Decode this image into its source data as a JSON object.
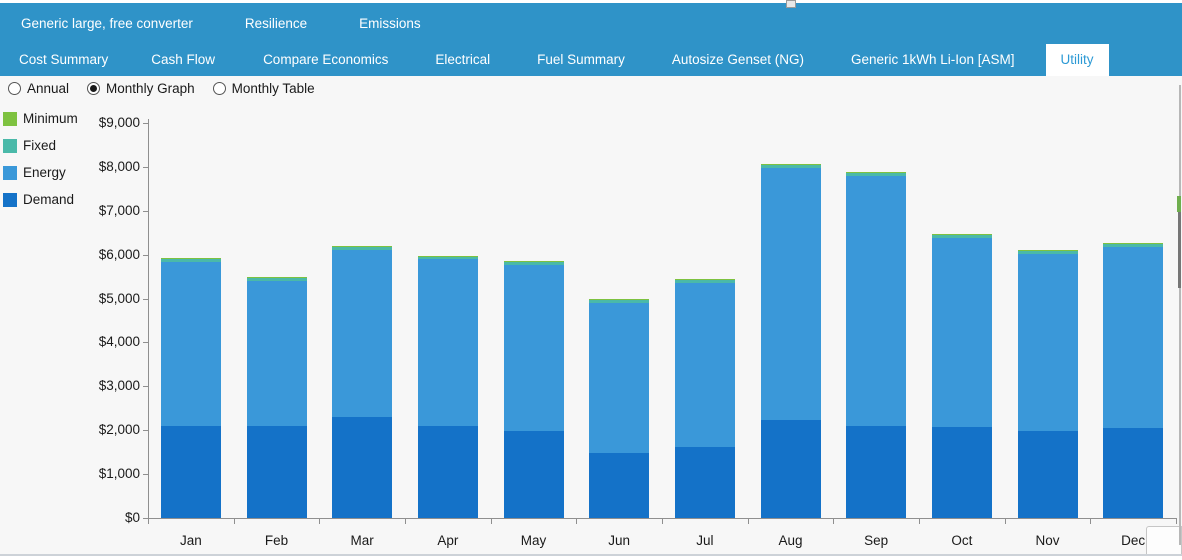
{
  "header": {
    "row1_tabs": [
      {
        "label": "Generic large, free converter",
        "active": false
      },
      {
        "label": "Resilience",
        "active": false
      },
      {
        "label": "Emissions",
        "active": false
      }
    ],
    "row2_tabs": [
      {
        "label": "Cost Summary",
        "active": false
      },
      {
        "label": "Cash Flow",
        "active": false
      },
      {
        "label": "Compare Economics",
        "active": false
      },
      {
        "label": "Electrical",
        "active": false
      },
      {
        "label": "Fuel Summary",
        "active": false
      },
      {
        "label": "Autosize Genset (NG)",
        "active": false
      },
      {
        "label": "Generic 1kWh Li-Ion [ASM]",
        "active": false
      },
      {
        "label": "Utility",
        "active": true
      }
    ],
    "background_color": "#2f93c8",
    "active_tab_text_color": "#2d9ad5"
  },
  "view_options": {
    "radios": [
      {
        "label": "Annual",
        "selected": false
      },
      {
        "label": "Monthly Graph",
        "selected": true
      },
      {
        "label": "Monthly Table",
        "selected": false
      }
    ]
  },
  "legend": [
    {
      "label": "Minimum",
      "color": "#7ec240"
    },
    {
      "label": "Fixed",
      "color": "#4ab9a9"
    },
    {
      "label": "Energy",
      "color": "#3a98d9"
    },
    {
      "label": "Demand",
      "color": "#1472c8"
    }
  ],
  "chart_data": {
    "type": "bar",
    "stacked": true,
    "title": "",
    "xlabel": "",
    "ylabel": "",
    "categories": [
      "Jan",
      "Feb",
      "Mar",
      "Apr",
      "May",
      "Jun",
      "Jul",
      "Aug",
      "Sep",
      "Oct",
      "Nov",
      "Dec"
    ],
    "series": [
      {
        "name": "Demand",
        "color": "#1472c8",
        "values": [
          2100,
          2100,
          2290,
          2100,
          1980,
          1490,
          1610,
          2230,
          2090,
          2080,
          1980,
          2040
        ]
      },
      {
        "name": "Energy",
        "color": "#3a98d9",
        "values": [
          3730,
          3290,
          3810,
          3790,
          3790,
          3410,
          3740,
          5740,
          5700,
          4290,
          4030,
          4130
        ]
      },
      {
        "name": "Fixed",
        "color": "#4ab9a9",
        "values": [
          70,
          70,
          70,
          70,
          70,
          70,
          70,
          70,
          70,
          70,
          70,
          70
        ]
      },
      {
        "name": "Minimum",
        "color": "#7ec240",
        "values": [
          20,
          20,
          20,
          20,
          20,
          20,
          20,
          20,
          20,
          20,
          20,
          20
        ]
      }
    ],
    "totals": [
      5920,
      5480,
      6190,
      5980,
      5860,
      4990,
      5440,
      8060,
      7880,
      6460,
      6100,
      6260
    ],
    "ylim": [
      0,
      9000
    ],
    "ytick_step": 1000,
    "ytick_labels": [
      "$0",
      "$1,000",
      "$2,000",
      "$3,000",
      "$4,000",
      "$5,000",
      "$6,000",
      "$7,000",
      "$8,000",
      "$9,000"
    ],
    "grid": false,
    "legend_position": "left"
  }
}
